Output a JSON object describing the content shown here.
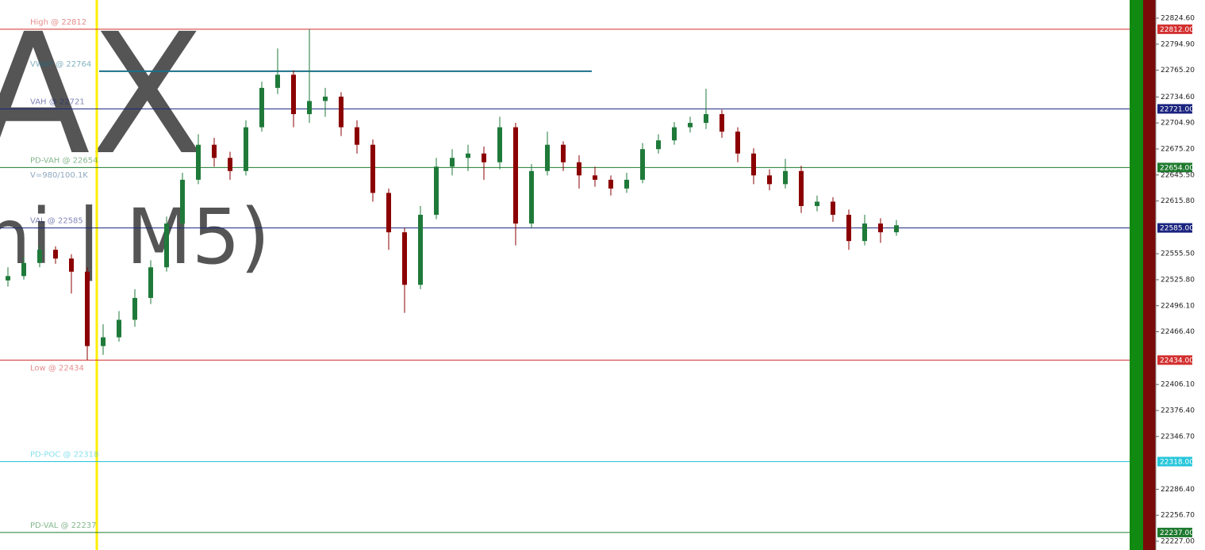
{
  "chart_data": {
    "type": "candlestick",
    "watermark": [
      "AX",
      "ni | M5)"
    ],
    "note": "V=980/100.1K",
    "up_color": "#1f7a3a",
    "down_color": "#8b0000",
    "ylim": [
      22217,
      22845.4
    ],
    "yticks": [
      {
        "value": 22824.6,
        "label": "22824.60"
      },
      {
        "value": 22794.9,
        "label": "22794.90"
      },
      {
        "value": 22765.2,
        "label": "22765.20"
      },
      {
        "value": 22734.6,
        "label": "22734.60"
      },
      {
        "value": 22704.9,
        "label": "22704.90"
      },
      {
        "value": 22675.2,
        "label": "22675.20"
      },
      {
        "value": 22645.5,
        "label": "22645.50"
      },
      {
        "value": 22615.8,
        "label": "22615.80"
      },
      {
        "value": 22555.5,
        "label": "22555.50"
      },
      {
        "value": 22525.8,
        "label": "22525.80"
      },
      {
        "value": 22496.1,
        "label": "22496.10"
      },
      {
        "value": 22466.4,
        "label": "22466.40"
      },
      {
        "value": 22406.1,
        "label": "22406.10"
      },
      {
        "value": 22376.4,
        "label": "22376.40"
      },
      {
        "value": 22346.7,
        "label": "22346.70"
      },
      {
        "value": 22286.4,
        "label": "22286.40"
      },
      {
        "value": 22256.7,
        "label": "22256.70"
      },
      {
        "value": 22227,
        "label": "22227.00"
      }
    ],
    "levels": [
      {
        "value": 22812,
        "label": "High @ 22812",
        "tag": "22812.00",
        "color": "#d32f2f"
      },
      {
        "value": 22764,
        "label": "VWAP @ 22764",
        "color": "#1b6f8a"
      },
      {
        "value": 22721,
        "label": "VAH @ 22721",
        "tag": "22721.00",
        "color": "#1a237e"
      },
      {
        "value": 22654,
        "label": "PD-VAH @ 22654",
        "tag": "22654.00",
        "color": "#1e7a2e"
      },
      {
        "value": 22585,
        "label": "VAL @ 22585",
        "tag": "22585.00",
        "color": "#1a237e"
      },
      {
        "value": 22434,
        "label": "Low @ 22434",
        "tag": "22434.00",
        "color": "#d32f2f"
      },
      {
        "value": 22318,
        "label": "PD-POC @ 22318",
        "tag": "22318.00",
        "color": "#26c6da"
      },
      {
        "value": 22237,
        "label": "PD-VAL @ 22237",
        "tag": "22237.00",
        "color": "#1e7a2e"
      }
    ],
    "ohlc": [
      [
        22525,
        22540,
        22518,
        22530
      ],
      [
        22530,
        22552,
        22526,
        22545
      ],
      [
        22545,
        22565,
        22540,
        22560
      ],
      [
        22560,
        22564,
        22544,
        22550
      ],
      [
        22550,
        22555,
        22510,
        22535
      ],
      [
        22535,
        22540,
        22434,
        22450
      ],
      [
        22450,
        22475,
        22440,
        22460
      ],
      [
        22460,
        22490,
        22455,
        22480
      ],
      [
        22480,
        22515,
        22472,
        22505
      ],
      [
        22505,
        22548,
        22498,
        22540
      ],
      [
        22540,
        22598,
        22535,
        22590
      ],
      [
        22590,
        22648,
        22585,
        22640
      ],
      [
        22640,
        22692,
        22635,
        22680
      ],
      [
        22680,
        22688,
        22655,
        22665
      ],
      [
        22665,
        22672,
        22640,
        22650
      ],
      [
        22650,
        22708,
        22645,
        22700
      ],
      [
        22700,
        22752,
        22695,
        22745
      ],
      [
        22745,
        22790,
        22738,
        22760
      ],
      [
        22760,
        22765,
        22700,
        22715
      ],
      [
        22715,
        22812,
        22705,
        22730
      ],
      [
        22730,
        22745,
        22712,
        22735
      ],
      [
        22735,
        22740,
        22690,
        22700
      ],
      [
        22700,
        22708,
        22670,
        22680
      ],
      [
        22680,
        22686,
        22615,
        22625
      ],
      [
        22625,
        22630,
        22560,
        22580
      ],
      [
        22580,
        22585,
        22488,
        22520
      ],
      [
        22520,
        22610,
        22515,
        22600
      ],
      [
        22600,
        22665,
        22595,
        22655
      ],
      [
        22655,
        22675,
        22645,
        22665
      ],
      [
        22665,
        22680,
        22650,
        22670
      ],
      [
        22670,
        22678,
        22640,
        22660
      ],
      [
        22660,
        22712,
        22652,
        22700
      ],
      [
        22700,
        22705,
        22565,
        22590
      ],
      [
        22590,
        22658,
        22585,
        22650
      ],
      [
        22650,
        22695,
        22645,
        22680
      ],
      [
        22680,
        22684,
        22650,
        22660
      ],
      [
        22660,
        22668,
        22630,
        22645
      ],
      [
        22645,
        22655,
        22632,
        22640
      ],
      [
        22640,
        22645,
        22622,
        22630
      ],
      [
        22630,
        22648,
        22625,
        22640
      ],
      [
        22640,
        22682,
        22636,
        22675
      ],
      [
        22675,
        22692,
        22670,
        22685
      ],
      [
        22685,
        22706,
        22680,
        22700
      ],
      [
        22700,
        22712,
        22694,
        22705
      ],
      [
        22705,
        22744,
        22698,
        22715
      ],
      [
        22715,
        22720,
        22688,
        22695
      ],
      [
        22695,
        22700,
        22660,
        22670
      ],
      [
        22670,
        22676,
        22635,
        22645
      ],
      [
        22645,
        22652,
        22628,
        22635
      ],
      [
        22635,
        22664,
        22630,
        22650
      ],
      [
        22650,
        22656,
        22602,
        22610
      ],
      [
        22610,
        22622,
        22604,
        22615
      ],
      [
        22615,
        22620,
        22592,
        22600
      ],
      [
        22600,
        22606,
        22560,
        22570
      ],
      [
        22570,
        22600,
        22565,
        22590
      ],
      [
        22590,
        22596,
        22568,
        22580
      ],
      [
        22580,
        22594,
        22576,
        22588
      ]
    ]
  }
}
